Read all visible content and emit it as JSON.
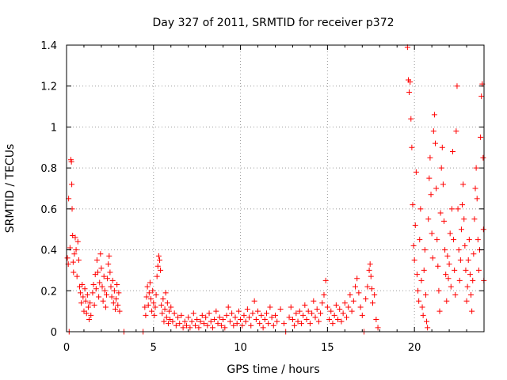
{
  "chart_data": {
    "type": "scatter",
    "title": "Day 327 of 2011, SRMTID for receiver p372",
    "xlabel": "GPS time / hours",
    "ylabel": "SRMTID / TECUs",
    "xlim": [
      0,
      24
    ],
    "ylim": [
      0,
      1.4
    ],
    "xticks": [
      0,
      5,
      10,
      15,
      20
    ],
    "xtick_labels": [
      "0",
      "5",
      "10",
      "15",
      "20"
    ],
    "yticks": [
      0,
      0.2,
      0.4,
      0.6,
      0.8,
      1.0,
      1.2,
      1.4
    ],
    "ytick_labels": [
      "0",
      "0.2",
      "0.4",
      "0.6",
      "0.8",
      "1",
      "1.2",
      "1.4"
    ],
    "grid": true,
    "marker": "+",
    "series": [
      {
        "name": "SRMTID",
        "color": "#ff0000",
        "points": [
          [
            0.05,
            0.36
          ],
          [
            0.1,
            0.33
          ],
          [
            0.12,
            0.65
          ],
          [
            0.15,
            0.0
          ],
          [
            0.2,
            0.41
          ],
          [
            0.25,
            0.84
          ],
          [
            0.28,
            0.83
          ],
          [
            0.3,
            0.72
          ],
          [
            0.32,
            0.6
          ],
          [
            0.35,
            0.47
          ],
          [
            0.38,
            0.34
          ],
          [
            0.4,
            0.29
          ],
          [
            0.45,
            0.38
          ],
          [
            0.5,
            0.46
          ],
          [
            0.55,
            0.4
          ],
          [
            0.6,
            0.27
          ],
          [
            0.65,
            0.44
          ],
          [
            0.7,
            0.35
          ],
          [
            0.75,
            0.22
          ],
          [
            0.8,
            0.19
          ],
          [
            0.85,
            0.14
          ],
          [
            0.9,
            0.23
          ],
          [
            0.95,
            0.17
          ],
          [
            1.0,
            0.1
          ],
          [
            1.05,
            0.21
          ],
          [
            1.1,
            0.15
          ],
          [
            1.15,
            0.09
          ],
          [
            1.2,
            0.18
          ],
          [
            1.25,
            0.12
          ],
          [
            1.3,
            0.06
          ],
          [
            1.35,
            0.14
          ],
          [
            1.4,
            0.08
          ],
          [
            1.5,
            0.19
          ],
          [
            1.55,
            0.23
          ],
          [
            1.6,
            0.13
          ],
          [
            1.65,
            0.28
          ],
          [
            1.7,
            0.21
          ],
          [
            1.75,
            0.35
          ],
          [
            1.8,
            0.29
          ],
          [
            1.85,
            0.17
          ],
          [
            1.9,
            0.24
          ],
          [
            1.95,
            0.38
          ],
          [
            2.0,
            0.31
          ],
          [
            2.05,
            0.22
          ],
          [
            2.1,
            0.15
          ],
          [
            2.15,
            0.27
          ],
          [
            2.2,
            0.2
          ],
          [
            2.25,
            0.12
          ],
          [
            2.3,
            0.18
          ],
          [
            2.35,
            0.26
          ],
          [
            2.4,
            0.33
          ],
          [
            2.45,
            0.37
          ],
          [
            2.5,
            0.29
          ],
          [
            2.55,
            0.22
          ],
          [
            2.6,
            0.17
          ],
          [
            2.65,
            0.25
          ],
          [
            2.7,
            0.14
          ],
          [
            2.75,
            0.2
          ],
          [
            2.8,
            0.11
          ],
          [
            2.85,
            0.16
          ],
          [
            2.9,
            0.23
          ],
          [
            2.95,
            0.13
          ],
          [
            3.0,
            0.19
          ],
          [
            3.05,
            0.1
          ],
          [
            3.3,
            0.0
          ],
          [
            4.4,
            0.0
          ],
          [
            4.5,
            0.12
          ],
          [
            4.55,
            0.08
          ],
          [
            4.6,
            0.17
          ],
          [
            4.65,
            0.22
          ],
          [
            4.7,
            0.13
          ],
          [
            4.75,
            0.19
          ],
          [
            4.8,
            0.24
          ],
          [
            4.85,
            0.16
          ],
          [
            4.9,
            0.1
          ],
          [
            4.95,
            0.2
          ],
          [
            5.0,
            0.14
          ],
          [
            5.05,
            0.08
          ],
          [
            5.1,
            0.12
          ],
          [
            5.15,
            0.18
          ],
          [
            5.2,
            0.27
          ],
          [
            5.25,
            0.32
          ],
          [
            5.3,
            0.37
          ],
          [
            5.35,
            0.35
          ],
          [
            5.4,
            0.3
          ],
          [
            5.45,
            0.13
          ],
          [
            5.5,
            0.09
          ],
          [
            5.55,
            0.16
          ],
          [
            5.6,
            0.05
          ],
          [
            5.65,
            0.11
          ],
          [
            5.7,
            0.19
          ],
          [
            5.75,
            0.07
          ],
          [
            5.8,
            0.14
          ],
          [
            5.85,
            0.04
          ],
          [
            5.9,
            0.1
          ],
          [
            5.95,
            0.06
          ],
          [
            6.0,
            0.12
          ],
          [
            6.1,
            0.05
          ],
          [
            6.2,
            0.09
          ],
          [
            6.3,
            0.03
          ],
          [
            6.4,
            0.07
          ],
          [
            6.5,
            0.04
          ],
          [
            6.6,
            0.08
          ],
          [
            6.7,
            0.02
          ],
          [
            6.8,
            0.05
          ],
          [
            6.9,
            0.03
          ],
          [
            7.0,
            0.07
          ],
          [
            7.1,
            0.02
          ],
          [
            7.2,
            0.05
          ],
          [
            7.3,
            0.09
          ],
          [
            7.4,
            0.03
          ],
          [
            7.5,
            0.06
          ],
          [
            7.6,
            0.02
          ],
          [
            7.7,
            0.05
          ],
          [
            7.8,
            0.08
          ],
          [
            7.9,
            0.04
          ],
          [
            8.0,
            0.07
          ],
          [
            8.1,
            0.03
          ],
          [
            8.2,
            0.09
          ],
          [
            8.3,
            0.05
          ],
          [
            8.4,
            0.02
          ],
          [
            8.5,
            0.06
          ],
          [
            8.6,
            0.1
          ],
          [
            8.7,
            0.04
          ],
          [
            8.8,
            0.07
          ],
          [
            8.9,
            0.03
          ],
          [
            9.0,
            0.06
          ],
          [
            9.1,
            0.02
          ],
          [
            9.2,
            0.08
          ],
          [
            9.3,
            0.12
          ],
          [
            9.4,
            0.05
          ],
          [
            9.5,
            0.09
          ],
          [
            9.6,
            0.03
          ],
          [
            9.7,
            0.07
          ],
          [
            9.8,
            0.04
          ],
          [
            9.9,
            0.1
          ],
          [
            10.0,
            0.06
          ],
          [
            10.1,
            0.03
          ],
          [
            10.2,
            0.08
          ],
          [
            10.3,
            0.05
          ],
          [
            10.4,
            0.11
          ],
          [
            10.5,
            0.07
          ],
          [
            10.6,
            0.03
          ],
          [
            10.7,
            0.09
          ],
          [
            10.8,
            0.15
          ],
          [
            10.9,
            0.06
          ],
          [
            11.0,
            0.1
          ],
          [
            11.1,
            0.04
          ],
          [
            11.2,
            0.08
          ],
          [
            11.3,
            0.02
          ],
          [
            11.4,
            0.06
          ],
          [
            11.5,
            0.09
          ],
          [
            11.6,
            0.04
          ],
          [
            11.7,
            0.12
          ],
          [
            11.8,
            0.07
          ],
          [
            11.9,
            0.03
          ],
          [
            12.0,
            0.08
          ],
          [
            12.1,
            0.05
          ],
          [
            12.3,
            0.11
          ],
          [
            12.5,
            0.04
          ],
          [
            12.6,
            0.0
          ],
          [
            12.8,
            0.07
          ],
          [
            12.9,
            0.12
          ],
          [
            13.0,
            0.06
          ],
          [
            13.1,
            0.03
          ],
          [
            13.2,
            0.09
          ],
          [
            13.3,
            0.05
          ],
          [
            13.4,
            0.1
          ],
          [
            13.5,
            0.04
          ],
          [
            13.6,
            0.08
          ],
          [
            13.7,
            0.13
          ],
          [
            13.8,
            0.06
          ],
          [
            13.9,
            0.1
          ],
          [
            14.0,
            0.04
          ],
          [
            14.1,
            0.09
          ],
          [
            14.2,
            0.15
          ],
          [
            14.3,
            0.07
          ],
          [
            14.4,
            0.11
          ],
          [
            14.5,
            0.05
          ],
          [
            14.6,
            0.09
          ],
          [
            14.7,
            0.14
          ],
          [
            14.8,
            0.18
          ],
          [
            14.9,
            0.25
          ],
          [
            15.0,
            0.12
          ],
          [
            15.1,
            0.06
          ],
          [
            15.2,
            0.1
          ],
          [
            15.3,
            0.04
          ],
          [
            15.4,
            0.08
          ],
          [
            15.5,
            0.13
          ],
          [
            15.6,
            0.06
          ],
          [
            15.7,
            0.11
          ],
          [
            15.8,
            0.05
          ],
          [
            15.9,
            0.09
          ],
          [
            16.0,
            0.14
          ],
          [
            16.1,
            0.07
          ],
          [
            16.2,
            0.12
          ],
          [
            16.3,
            0.18
          ],
          [
            16.4,
            0.1
          ],
          [
            16.5,
            0.15
          ],
          [
            16.6,
            0.22
          ],
          [
            16.7,
            0.26
          ],
          [
            16.8,
            0.19
          ],
          [
            16.9,
            0.12
          ],
          [
            17.0,
            0.08
          ],
          [
            17.1,
            0.0
          ],
          [
            17.2,
            0.16
          ],
          [
            17.3,
            0.22
          ],
          [
            17.4,
            0.3
          ],
          [
            17.45,
            0.33
          ],
          [
            17.5,
            0.27
          ],
          [
            17.55,
            0.21
          ],
          [
            17.6,
            0.14
          ],
          [
            17.7,
            0.18
          ],
          [
            17.8,
            0.06
          ],
          [
            17.9,
            0.02
          ],
          [
            19.6,
            1.39
          ],
          [
            19.65,
            1.23
          ],
          [
            19.7,
            1.17
          ],
          [
            19.75,
            1.22
          ],
          [
            19.8,
            1.04
          ],
          [
            19.85,
            0.9
          ],
          [
            19.9,
            0.62
          ],
          [
            19.95,
            0.42
          ],
          [
            20.0,
            0.35
          ],
          [
            20.05,
            0.52
          ],
          [
            20.1,
            0.78
          ],
          [
            20.15,
            0.28
          ],
          [
            20.2,
            0.2
          ],
          [
            20.25,
            0.15
          ],
          [
            20.3,
            0.45
          ],
          [
            20.35,
            0.6
          ],
          [
            20.4,
            0.25
          ],
          [
            20.45,
            0.12
          ],
          [
            20.5,
            0.08
          ],
          [
            20.55,
            0.3
          ],
          [
            20.6,
            0.4
          ],
          [
            20.65,
            0.18
          ],
          [
            20.7,
            0.05
          ],
          [
            20.75,
            0.02
          ],
          [
            20.8,
            0.55
          ],
          [
            20.85,
            0.75
          ],
          [
            20.9,
            0.85
          ],
          [
            20.95,
            0.67
          ],
          [
            21.0,
            0.48
          ],
          [
            21.05,
            0.36
          ],
          [
            21.1,
            0.98
          ],
          [
            21.15,
            1.06
          ],
          [
            21.2,
            0.92
          ],
          [
            21.25,
            0.7
          ],
          [
            21.3,
            0.45
          ],
          [
            21.35,
            0.32
          ],
          [
            21.4,
            0.2
          ],
          [
            21.45,
            0.1
          ],
          [
            21.5,
            0.58
          ],
          [
            21.55,
            0.8
          ],
          [
            21.6,
            0.9
          ],
          [
            21.65,
            0.72
          ],
          [
            21.7,
            0.54
          ],
          [
            21.75,
            0.4
          ],
          [
            21.8,
            0.28
          ],
          [
            21.85,
            0.15
          ],
          [
            21.9,
            0.37
          ],
          [
            21.95,
            0.26
          ],
          [
            22.0,
            0.33
          ],
          [
            22.05,
            0.48
          ],
          [
            22.1,
            0.22
          ],
          [
            22.15,
            0.6
          ],
          [
            22.2,
            0.88
          ],
          [
            22.25,
            0.45
          ],
          [
            22.3,
            0.3
          ],
          [
            22.35,
            0.18
          ],
          [
            22.4,
            0.98
          ],
          [
            22.45,
            1.2
          ],
          [
            22.5,
            0.6
          ],
          [
            22.55,
            0.4
          ],
          [
            22.6,
            0.25
          ],
          [
            22.65,
            0.35
          ],
          [
            22.7,
            0.5
          ],
          [
            22.75,
            0.62
          ],
          [
            22.8,
            0.72
          ],
          [
            22.85,
            0.55
          ],
          [
            22.9,
            0.42
          ],
          [
            22.95,
            0.3
          ],
          [
            23.0,
            0.15
          ],
          [
            23.05,
            0.22
          ],
          [
            23.1,
            0.35
          ],
          [
            23.15,
            0.45
          ],
          [
            23.2,
            0.28
          ],
          [
            23.25,
            0.18
          ],
          [
            23.3,
            0.1
          ],
          [
            23.35,
            0.25
          ],
          [
            23.4,
            0.38
          ],
          [
            23.45,
            0.55
          ],
          [
            23.5,
            0.7
          ],
          [
            23.55,
            0.8
          ],
          [
            23.6,
            0.65
          ],
          [
            23.65,
            0.45
          ],
          [
            23.7,
            0.3
          ],
          [
            23.75,
            0.4
          ],
          [
            23.8,
            0.95
          ],
          [
            23.85,
            1.15
          ],
          [
            23.9,
            1.21
          ],
          [
            23.95,
            0.85
          ],
          [
            23.97,
            0.5
          ],
          [
            23.99,
            0.25
          ]
        ]
      }
    ]
  }
}
